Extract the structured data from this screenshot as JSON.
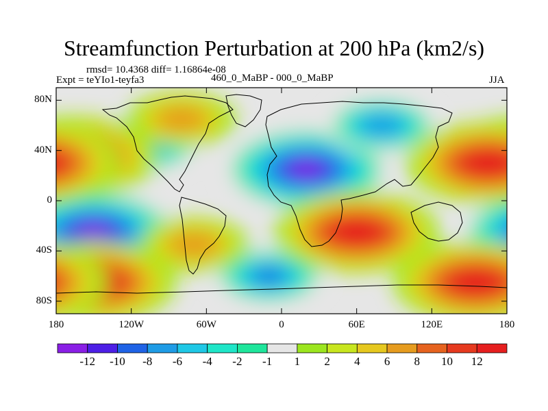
{
  "title": "Streamfunction Perturbation at 200 hPa (km2/s)",
  "stats_line": "rmsd= 10.4368 diff= 1.16864e-08",
  "experiment": "Expt = teYIo1-teyfa3",
  "comparison": "460_0_MaBP - 000_0_MaBP",
  "season": "JJA",
  "lat_ticks": [
    "80N",
    "40N",
    "0",
    "40S",
    "80S"
  ],
  "lon_ticks": [
    "180",
    "120W",
    "60W",
    "0",
    "60E",
    "120E",
    "180"
  ],
  "colorbar": {
    "labels": [
      "-12",
      "-10",
      "-8",
      "-6",
      "-4",
      "-2",
      "-1",
      "1",
      "2",
      "4",
      "6",
      "8",
      "10",
      "12"
    ],
    "colors": [
      "#8a1fe6",
      "#4d1fe6",
      "#1f63e6",
      "#1f9ce6",
      "#1fc8e6",
      "#1fe6c8",
      "#1fe69c",
      "#e6e6e6",
      "#9ce61f",
      "#c8e61f",
      "#e6c81f",
      "#e69c1f",
      "#e6631f",
      "#e63a1f",
      "#e61f1f"
    ]
  },
  "chart_data": {
    "type": "heatmap",
    "title": "Streamfunction Perturbation at 200 hPa (km2/s)",
    "subtitle": "460_0_MaBP - 000_0_MaBP",
    "xlabel": "",
    "ylabel": "",
    "xlim": [
      -180,
      180
    ],
    "ylim": [
      -90,
      90
    ],
    "x_ticks": [
      "180",
      "120W",
      "60W",
      "0",
      "60E",
      "120E",
      "180"
    ],
    "y_ticks": [
      "80N",
      "40N",
      "0",
      "40S",
      "80S"
    ],
    "levels": [
      -12,
      -10,
      -8,
      -6,
      -4,
      -2,
      -1,
      1,
      2,
      4,
      6,
      8,
      10,
      12
    ],
    "extrema": [
      {
        "lon": 20,
        "lat": 25,
        "value": -14
      },
      {
        "lon": -150,
        "lat": -25,
        "value": -13
      },
      {
        "lon": -10,
        "lat": -60,
        "value": -9
      },
      {
        "lon": 80,
        "lat": 60,
        "value": -8
      },
      {
        "lon": -110,
        "lat": 45,
        "value": -8
      },
      {
        "lon": -165,
        "lat": 35,
        "value": 13
      },
      {
        "lon": 165,
        "lat": 30,
        "value": 13
      },
      {
        "lon": 60,
        "lat": -25,
        "value": 13
      },
      {
        "lon": -150,
        "lat": -65,
        "value": 12
      },
      {
        "lon": 155,
        "lat": -65,
        "value": 12
      },
      {
        "lon": -80,
        "lat": 65,
        "value": 7
      },
      {
        "lon": -70,
        "lat": -35,
        "value": 7
      }
    ],
    "grid": false,
    "legend": "bottom"
  }
}
